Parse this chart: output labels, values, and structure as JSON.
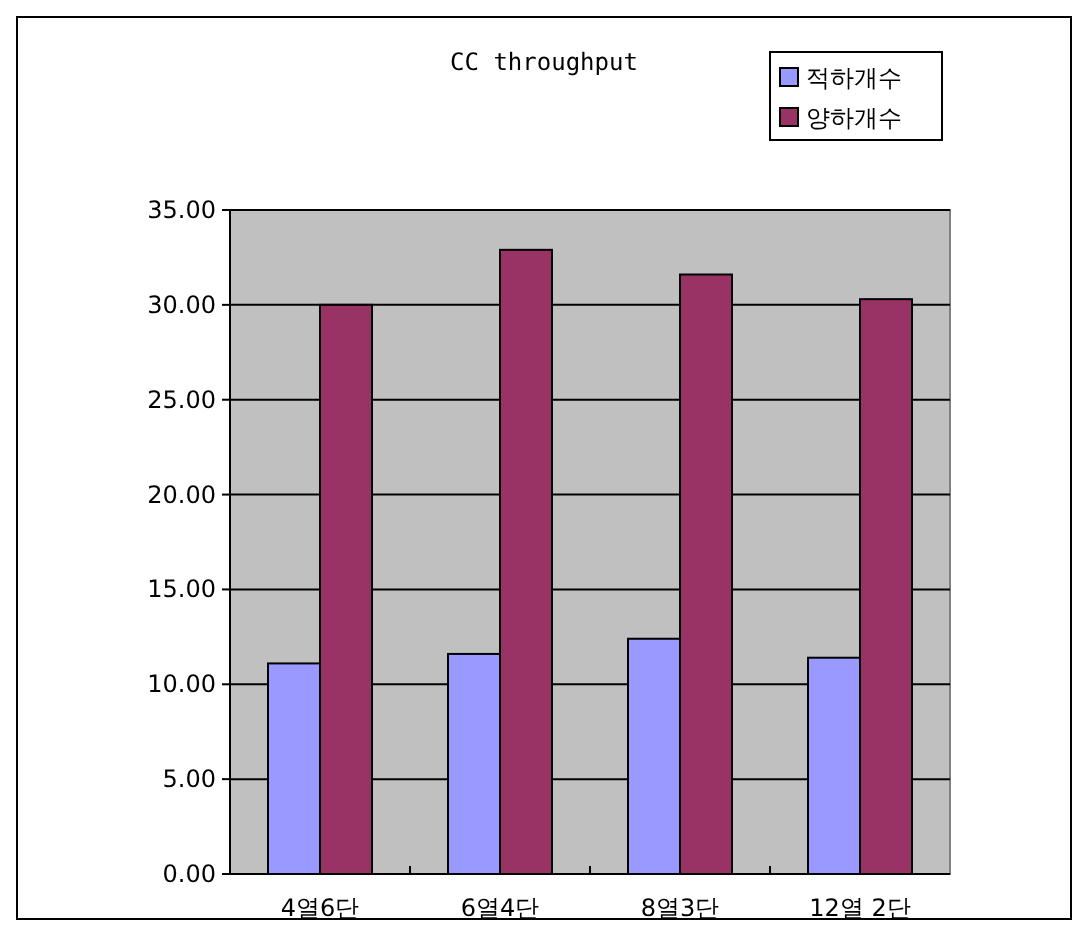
{
  "chart_data": {
    "type": "bar",
    "title": "CC throughput",
    "categories": [
      "4열6단",
      "6열4단",
      "8열3단",
      "12열 2단"
    ],
    "series": [
      {
        "name": "적하개수",
        "color": "#9999ff",
        "values": [
          11.1,
          11.6,
          12.4,
          11.4
        ]
      },
      {
        "name": "양하개수",
        "color": "#993366",
        "values": [
          30.0,
          32.9,
          31.6,
          30.3
        ]
      }
    ],
    "ylim": [
      0,
      35
    ],
    "yticks": [
      {
        "value": 0,
        "label": "0.00"
      },
      {
        "value": 5,
        "label": "5.00"
      },
      {
        "value": 10,
        "label": "10.00"
      },
      {
        "value": 15,
        "label": "15.00"
      },
      {
        "value": 20,
        "label": "20.00"
      },
      {
        "value": 25,
        "label": "25.00"
      },
      {
        "value": 30,
        "label": "30.00"
      },
      {
        "value": 35,
        "label": "35.00"
      }
    ],
    "grid": "y",
    "legend": "top right"
  }
}
